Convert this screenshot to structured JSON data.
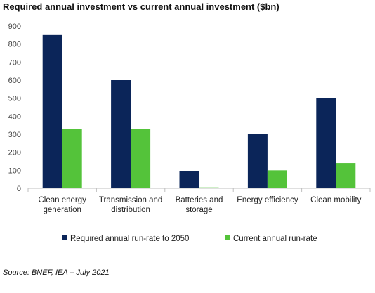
{
  "chart_data": {
    "type": "bar",
    "title": "Required annual investment vs current annual investment ($bn)",
    "categories": [
      [
        "Clean energy",
        "generation"
      ],
      [
        "Transmission and",
        "distribution"
      ],
      [
        "Batteries and",
        "storage"
      ],
      [
        "Energy efficiency"
      ],
      [
        "Clean mobility"
      ]
    ],
    "series": [
      {
        "name": "Required annual run-rate to 2050",
        "color": "#0b2559",
        "values": [
          850,
          600,
          95,
          300,
          500
        ]
      },
      {
        "name": "Current annual run-rate",
        "color": "#54c33a",
        "values": [
          330,
          330,
          5,
          100,
          140
        ]
      }
    ],
    "ylim": [
      0,
      900
    ],
    "yticks": [
      "0",
      "100",
      "200",
      "300",
      "400",
      "500",
      "600",
      "700",
      "800",
      "900"
    ],
    "grid": false,
    "legend_position": "bottom"
  },
  "source": "Source: BNEF, IEA – July 2021"
}
